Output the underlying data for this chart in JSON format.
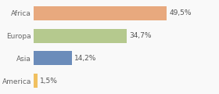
{
  "categories": [
    "Africa",
    "Europa",
    "Asia",
    "America"
  ],
  "values": [
    49.5,
    34.7,
    14.2,
    1.5
  ],
  "labels": [
    "49,5%",
    "34,7%",
    "14,2%",
    "1,5%"
  ],
  "bar_colors": [
    "#e8a97e",
    "#b5c98e",
    "#6b8cba",
    "#f0c060"
  ],
  "background_color": "#f9f9f9",
  "xlim": [
    0,
    68
  ],
  "bar_height": 0.62,
  "label_fontsize": 6.5,
  "category_fontsize": 6.5,
  "label_color": "#555555",
  "category_color": "#666666"
}
